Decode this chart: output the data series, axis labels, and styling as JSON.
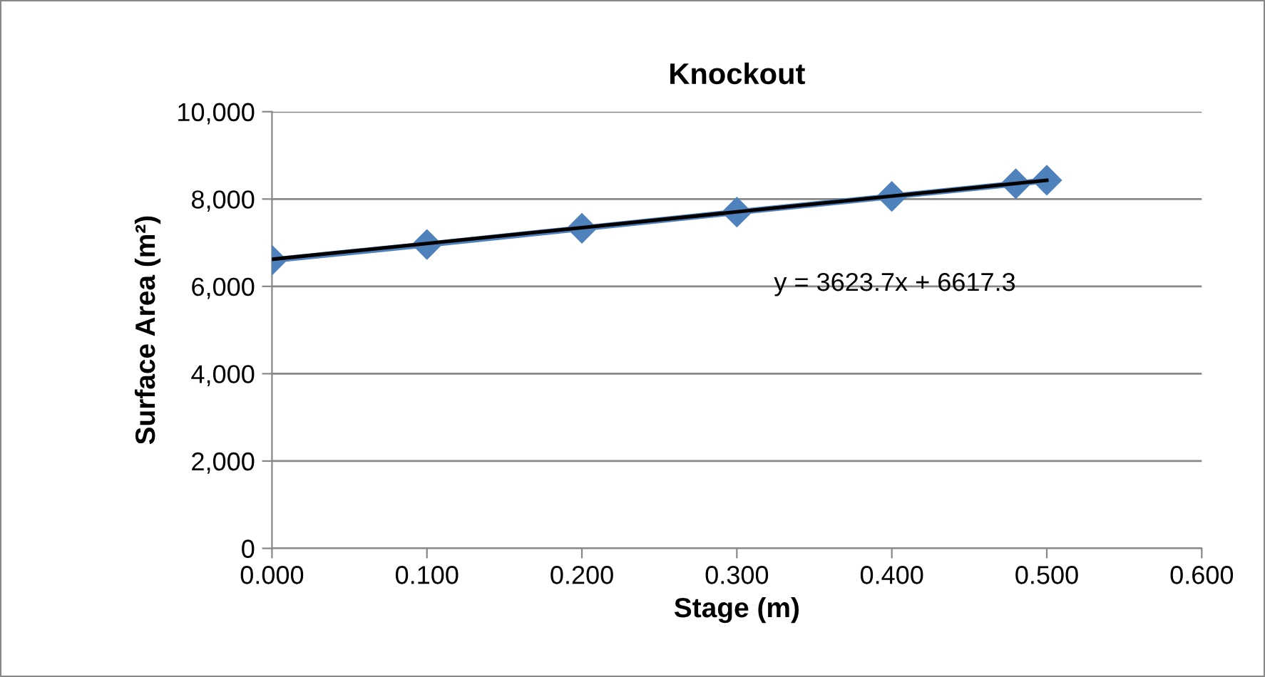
{
  "chart_data": {
    "type": "line",
    "title": "Knockout",
    "xlabel": "Stage (m)",
    "ylabel": "Surface Area (m²)",
    "x": [
      0.0,
      0.1,
      0.2,
      0.3,
      0.4,
      0.48,
      0.5
    ],
    "series": [
      {
        "color": "#4f81bd",
        "marker": "diamond",
        "values": [
          6600,
          6960,
          7330,
          7700,
          8060,
          8350,
          8430
        ]
      },
      {
        "type": "line",
        "color": "#000000",
        "marker": "none",
        "x": [
          0.0,
          0.5
        ],
        "values": [
          6620,
          8430
        ]
      }
    ],
    "annotations": [
      "y = 3623.7x + 6617.3"
    ],
    "xlim": [
      0.0,
      0.6
    ],
    "xticks": [
      {
        "value": 0.0,
        "label": "0.000"
      },
      {
        "value": 0.1,
        "label": "0.100"
      },
      {
        "value": 0.2,
        "label": "0.200"
      },
      {
        "value": 0.3,
        "label": "0.300"
      },
      {
        "value": 0.4,
        "label": "0.400"
      },
      {
        "value": 0.5,
        "label": "0.500"
      },
      {
        "value": 0.6,
        "label": "0.600"
      }
    ],
    "ylim": [
      0,
      10000
    ],
    "yticks": [
      0,
      {
        "value": 2000,
        "label": "2,000"
      },
      {
        "value": 4000,
        "label": "4,000"
      },
      {
        "value": 6000,
        "label": "6,000"
      },
      {
        "value": 8000,
        "label": "8,000"
      },
      {
        "value": 10000,
        "label": "10,000"
      }
    ],
    "grid": "y",
    "legend": false
  }
}
